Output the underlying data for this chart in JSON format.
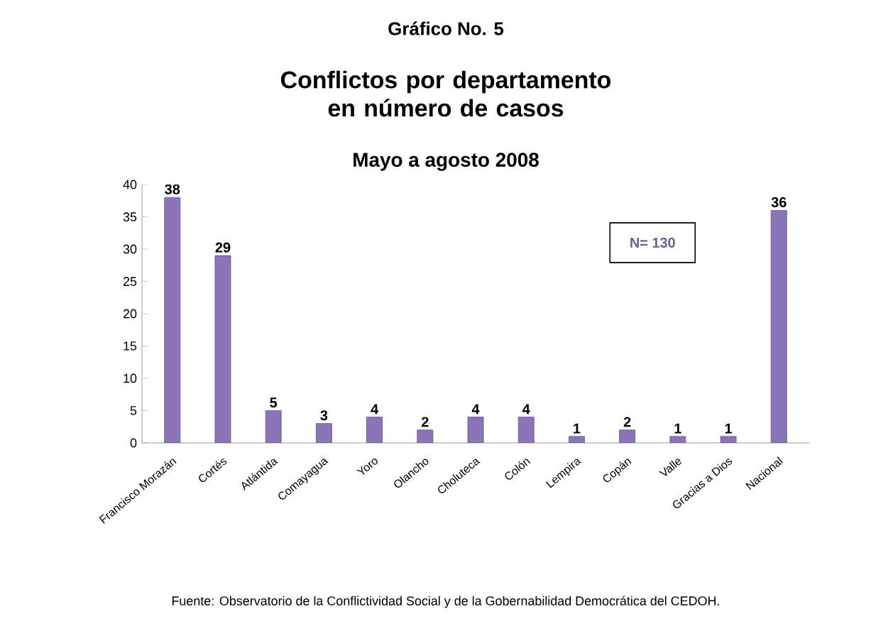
{
  "chart_data": {
    "type": "bar",
    "title": "Conflictos por departamento en número de casos",
    "subtitle": "Mayo a agosto 2008",
    "annotations": [
      "Gráfico No. 5",
      "N= 130",
      "Fuente: Observatorio  de la Conflictividad Social y de la Gobernabilidad  Democrática  del CEDOH."
    ],
    "categories": [
      "Francisco Morazán",
      "Cortés",
      "Atlántida",
      "Comayagua",
      "Yoro",
      "Olancho",
      "Choluteca",
      "Colón",
      "Lempira",
      "Copán",
      "Valle",
      "Gracias a Dios",
      "Nacional"
    ],
    "values": [
      38,
      29,
      5,
      3,
      4,
      2,
      4,
      4,
      1,
      2,
      1,
      1,
      36
    ],
    "color": "#8b74b8",
    "ylim": [
      0,
      40
    ],
    "yticks": [
      0,
      5,
      10,
      15,
      20,
      25,
      30,
      35,
      40
    ],
    "data_labels": true
  }
}
